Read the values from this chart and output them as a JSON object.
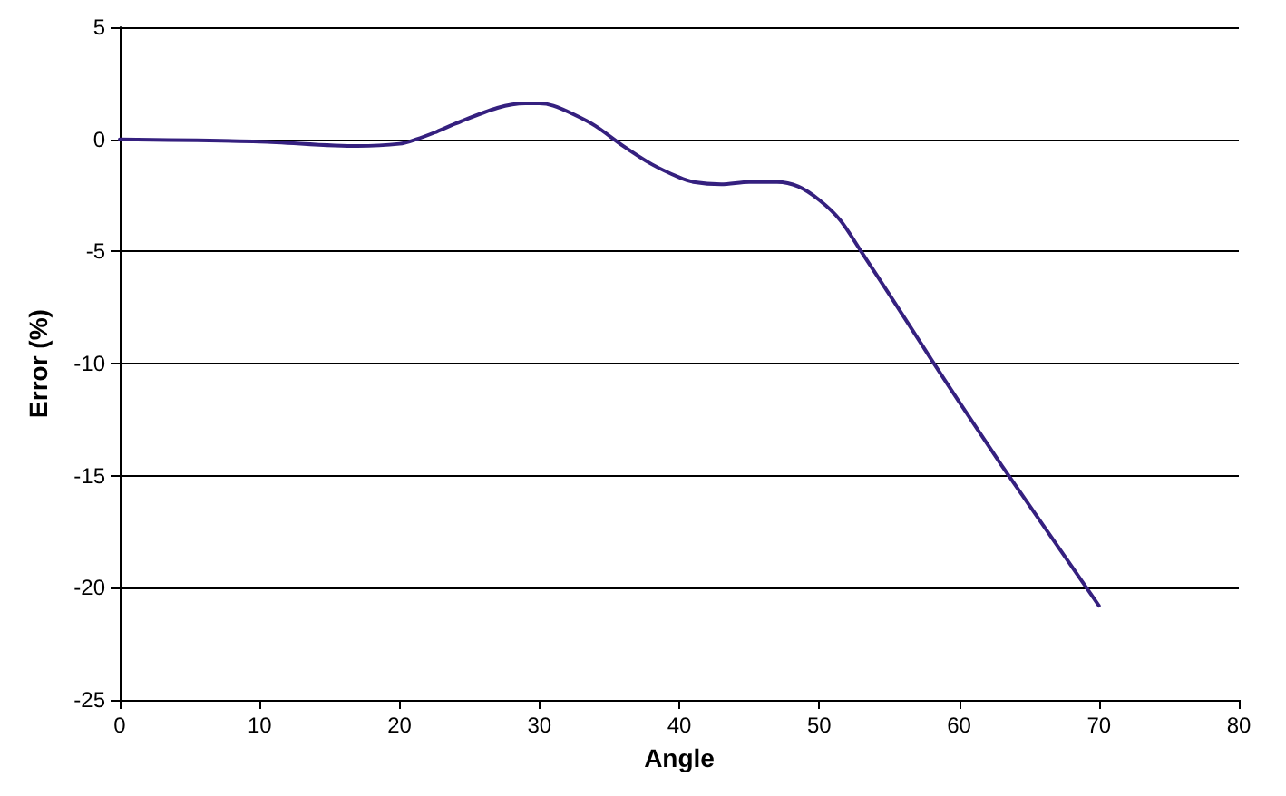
{
  "chart_data": {
    "type": "line",
    "xlabel": "Angle",
    "ylabel": "Error (%)",
    "series": [
      {
        "color": "#35207f",
        "x": [
          0,
          10,
          17,
          20,
          21.2,
          22.5,
          24,
          27,
          29,
          30,
          31,
          32.5,
          34,
          36,
          38,
          40,
          41,
          43,
          45,
          47,
          48.5,
          50,
          51.5,
          53,
          55,
          58,
          60,
          63,
          66,
          70
        ],
        "values": [
          0,
          -0.1,
          -0.3,
          -0.2,
          0,
          0.3,
          0.7,
          1.4,
          1.6,
          1.6,
          1.5,
          1.1,
          0.6,
          -0.3,
          -1.1,
          -1.7,
          -1.9,
          -2.0,
          -1.9,
          -1.9,
          -2.1,
          -2.7,
          -3.6,
          -5.0,
          -6.9,
          -9.8,
          -11.7,
          -14.5,
          -17.2,
          -20.8
        ]
      }
    ],
    "xlim": [
      0,
      80
    ],
    "xticks": [
      0,
      10,
      20,
      30,
      40,
      50,
      60,
      70,
      80
    ],
    "ylim": [
      -25,
      5
    ],
    "yticks": [
      -25,
      -20,
      -15,
      -10,
      -5,
      0,
      5
    ],
    "grid": "y",
    "marker": "none",
    "line_style": "solid"
  }
}
